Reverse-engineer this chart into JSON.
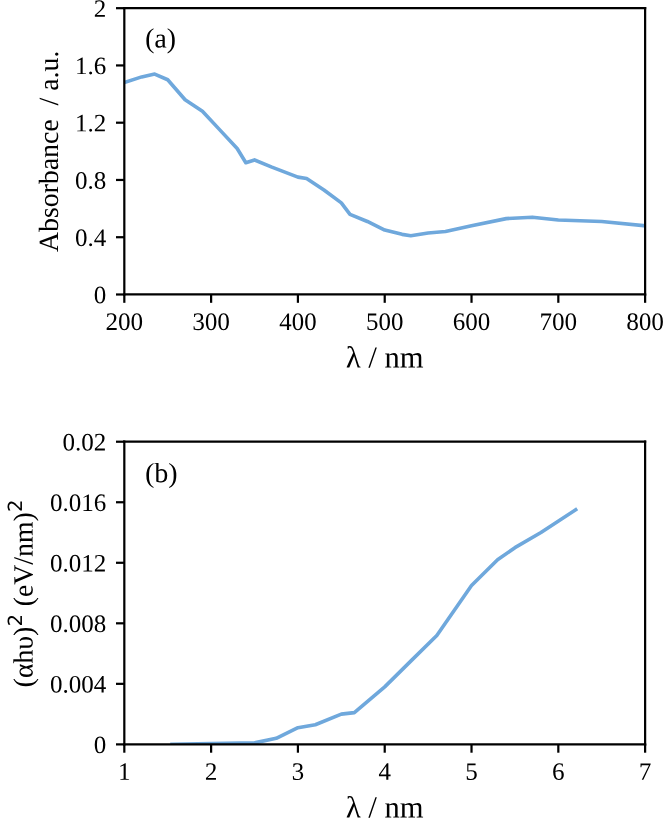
{
  "chart_data": [
    {
      "type": "line",
      "xlabel": "λ / nm",
      "ylabel": "Absorbance  / a.u.",
      "annotations": [
        "(a)"
      ],
      "xlim": [
        200,
        800
      ],
      "xticks": [
        200,
        300,
        400,
        500,
        600,
        700,
        800
      ],
      "ylim": [
        0,
        2
      ],
      "yticks": [
        0,
        0.4,
        0.8,
        1.2,
        1.6,
        2
      ],
      "grid": false,
      "legend": false,
      "x": [
        200,
        220,
        235,
        250,
        270,
        290,
        310,
        330,
        340,
        350,
        370,
        400,
        410,
        430,
        450,
        460,
        480,
        500,
        520,
        530,
        550,
        570,
        600,
        640,
        670,
        700,
        750,
        800
      ],
      "series": [
        {
          "color": "#6fa8dc",
          "values": [
            1.48,
            1.52,
            1.54,
            1.5,
            1.36,
            1.28,
            1.15,
            1.02,
            0.92,
            0.94,
            0.89,
            0.82,
            0.81,
            0.73,
            0.64,
            0.56,
            0.51,
            0.45,
            0.42,
            0.41,
            0.43,
            0.44,
            0.48,
            0.53,
            0.54,
            0.52,
            0.51,
            0.48
          ]
        }
      ]
    },
    {
      "type": "line",
      "xlabel": "λ / nm",
      "ylabel": "(αhυ)$^{2}$ (eV/nm)$^{2}$",
      "annotations": [
        "(b)"
      ],
      "xlim": [
        1,
        7
      ],
      "xticks": [
        1,
        2,
        3,
        4,
        5,
        6,
        7
      ],
      "ylim": [
        0,
        0.02
      ],
      "yticks": [
        0,
        0.004,
        0.008,
        0.012,
        0.016,
        0.02
      ],
      "grid": false,
      "legend": false,
      "x": [
        1.55,
        2,
        2.5,
        2.75,
        3,
        3.2,
        3.5,
        3.65,
        4,
        4.3,
        4.6,
        5,
        5.3,
        5.5,
        5.8,
        6.2
      ],
      "series": [
        {
          "color": "#6fa8dc",
          "values": [
            0,
            5e-05,
            0.0001,
            0.0004,
            0.0011,
            0.0013,
            0.002,
            0.0021,
            0.0038,
            0.0055,
            0.0072,
            0.0105,
            0.0122,
            0.013,
            0.014,
            0.0155
          ]
        }
      ]
    }
  ]
}
